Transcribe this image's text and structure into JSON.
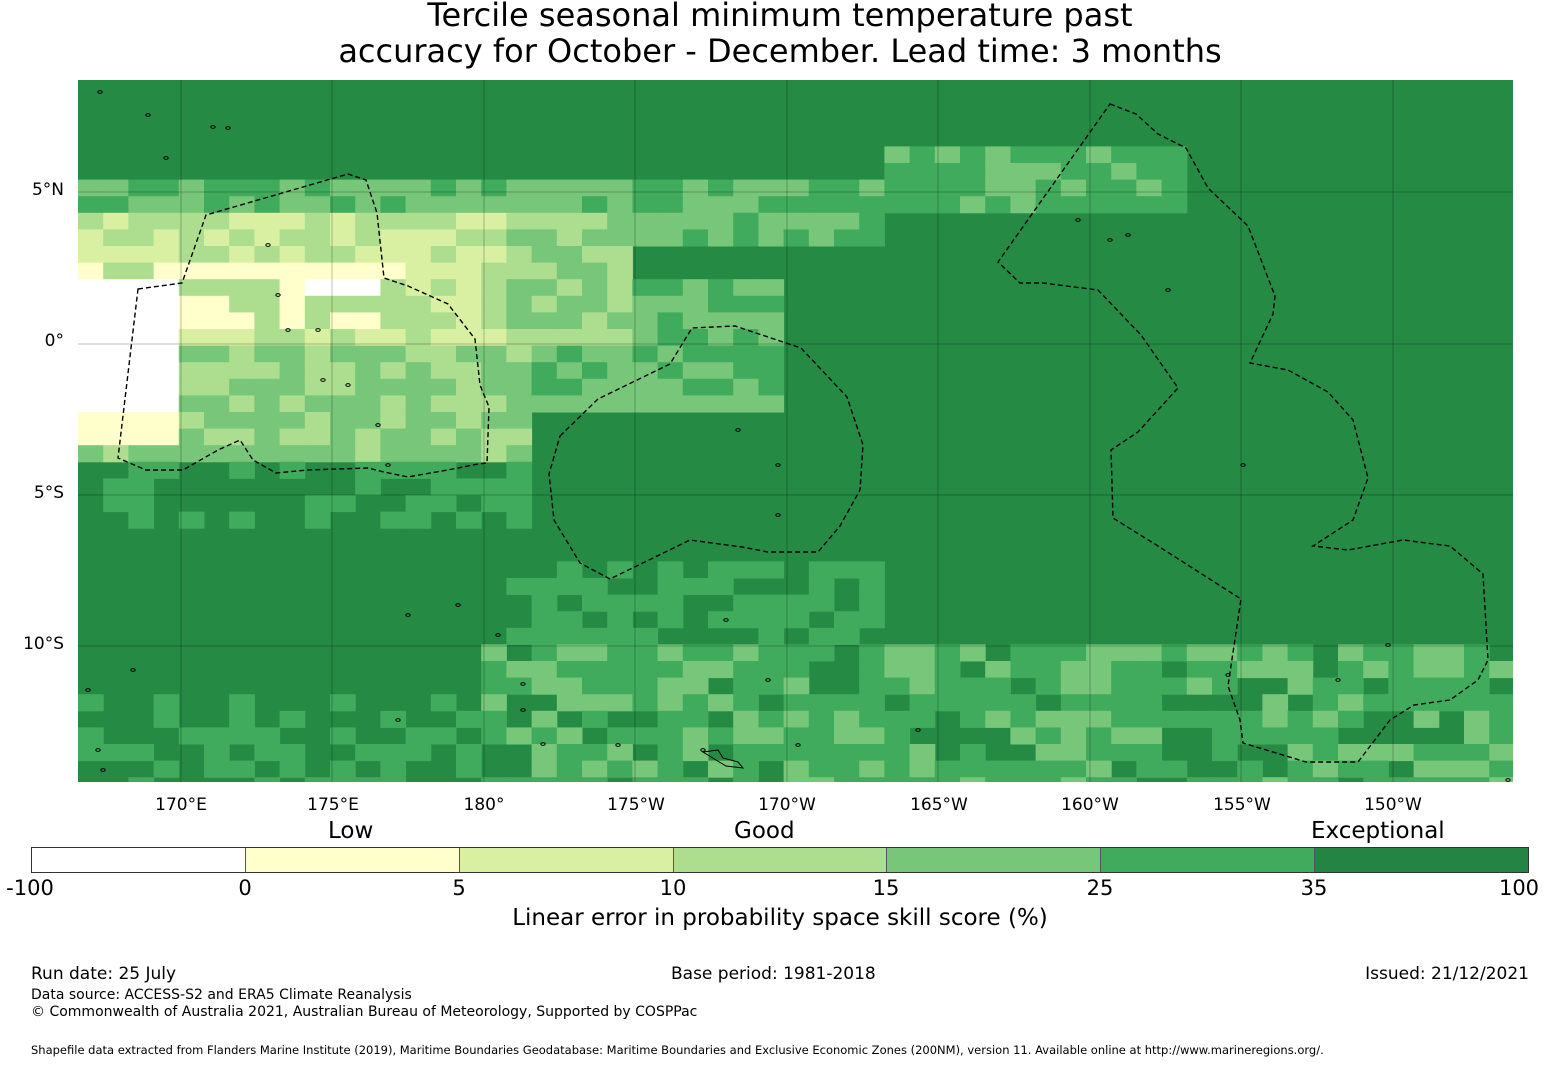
{
  "title": {
    "line1": "Tercile seasonal minimum temperature past",
    "line2": "accuracy for October - December. Lead time: 3 months"
  },
  "map": {
    "lon_labels": [
      "170°E",
      "175°E",
      "180°",
      "175°W",
      "170°W",
      "165°W",
      "160°W",
      "155°W",
      "150°W"
    ],
    "lat_labels": [
      "5°N",
      "0°",
      "5°S",
      "10°S"
    ],
    "background_color": "#258a44",
    "gridlines": true,
    "boundary_style": "dashed black (maritime EEZ boundaries)"
  },
  "legend": {
    "categories": [
      "Low",
      "Good",
      "Exceptional"
    ],
    "tick_labels": [
      "-100",
      "0",
      "5",
      "10",
      "15",
      "25",
      "35",
      "100"
    ],
    "colors": [
      "#ffffff",
      "#ffffcc",
      "#d9f0a3",
      "#addd8e",
      "#78c679",
      "#41ab5d",
      "#238443"
    ],
    "label": "Linear error in probability space skill score (%)"
  },
  "footer": {
    "run_date": "Run date: 25 July",
    "base_period": "Base period: 1981-2018",
    "issued": "Issued: 21/12/2021",
    "data_source": "Data source: ACCESS-S2 and ERA5 Climate Reanalysis",
    "copyright": "© Commonwealth of Australia 2021, Australian Bureau of Meteorology, Supported by COSPPac",
    "shapefile": "Shapefile data extracted from Flanders Marine Institute (2019), Maritime Boundaries Geodatabase: Maritime Boundaries and Exclusive Economic Zones (200NM), version 11. Available online at http://www.marineregions.org/."
  }
}
